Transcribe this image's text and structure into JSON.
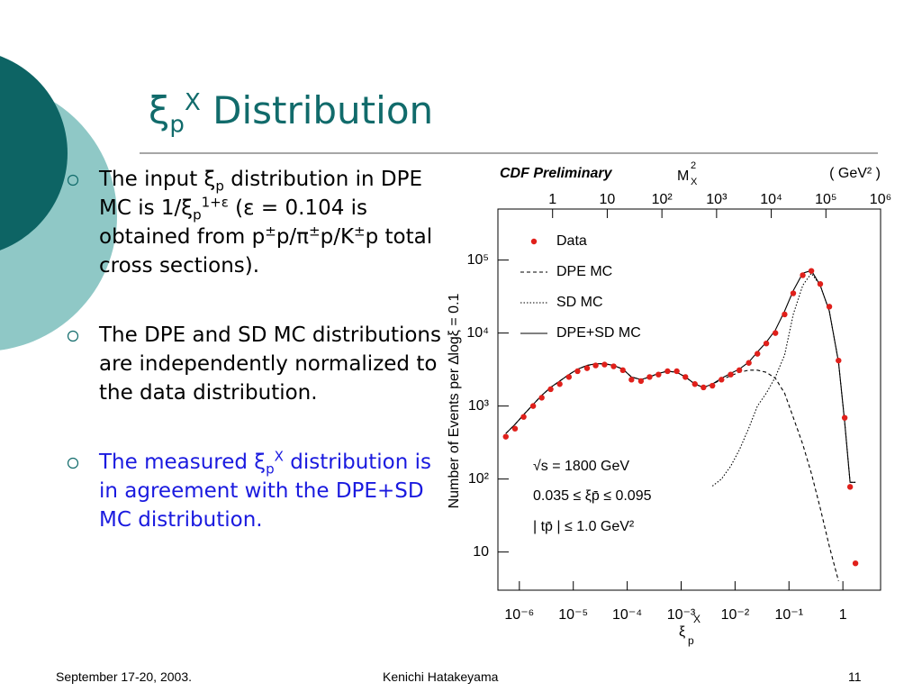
{
  "header": {
    "title": [
      {
        "text": "ξ"
      },
      {
        "sub": "p"
      },
      {
        "sup": "X"
      },
      {
        "text": " Distribution"
      }
    ]
  },
  "bullets": [
    {
      "color": "#000000",
      "parts": [
        {
          "text": "The input ξ"
        },
        {
          "sub": "p"
        },
        {
          "text": " distribution in DPE MC is 1/ξ"
        },
        {
          "sub": "p"
        },
        {
          "sup": "1+ε"
        },
        {
          "text": " (ε = 0.104 is obtained from p"
        },
        {
          "sup": "±"
        },
        {
          "text": "p/π"
        },
        {
          "sup": "±"
        },
        {
          "text": "p/K"
        },
        {
          "sup": "±"
        },
        {
          "text": "p total cross sections)."
        }
      ]
    },
    {
      "color": "#000000",
      "parts": [
        {
          "text": "The DPE and SD MC distributions are independently normalized to the data distribution."
        }
      ]
    },
    {
      "color": "#1a1adf",
      "parts": [
        {
          "text": "The measured ξ"
        },
        {
          "sub": "p"
        },
        {
          "sup": "X"
        },
        {
          "text": " distribution is in agreement with the DPE+SD MC distribution."
        }
      ]
    }
  ],
  "chart_data": {
    "type": "line",
    "title": "CDF Preliminary",
    "x2label": {
      "base": "M",
      "sup": "2",
      "sub": "X",
      "unit": "( GeV² )"
    },
    "ylabel": "Number of Events per ∆logξ = 0.1",
    "xlabel": {
      "base": "ξ",
      "sub": "p",
      "sup": "X"
    },
    "annotations": [
      "√s  = 1800 GeV",
      "0.035 ≤ ξp̄ ≤ 0.095",
      "| tp̄ | ≤ 1.0 GeV²"
    ],
    "xscale": "log",
    "yscale": "log",
    "xlim": [
      4e-07,
      5
    ],
    "ylim": [
      3,
      500000
    ],
    "x2lim": [
      0.1,
      1000000
    ],
    "xticks": [
      {
        "value": 1e-06,
        "label": "10⁻⁶"
      },
      {
        "value": 1e-05,
        "label": "10⁻⁵"
      },
      {
        "value": 0.0001,
        "label": "10⁻⁴"
      },
      {
        "value": 0.001,
        "label": "10⁻³"
      },
      {
        "value": 0.01,
        "label": "10⁻²"
      },
      {
        "value": 0.1,
        "label": "10⁻¹"
      },
      1
    ],
    "yticks": [
      10,
      {
        "value": 100,
        "label": "10²"
      },
      {
        "value": 1000,
        "label": "10³"
      },
      {
        "value": 10000,
        "label": "10⁴"
      },
      {
        "value": 100000,
        "label": "10⁵"
      }
    ],
    "x2ticks": [
      1,
      10,
      {
        "value": 100,
        "label": "10²"
      },
      {
        "value": 1000,
        "label": "10³"
      },
      {
        "value": 10000,
        "label": "10⁴"
      },
      {
        "value": 100000,
        "label": "10⁵"
      },
      {
        "value": 1000000,
        "label": "10⁶"
      }
    ],
    "x": [
      5.6e-07,
      8.3e-07,
      1.2e-06,
      1.8e-06,
      2.6e-06,
      3.8e-06,
      5.6e-06,
      8.3e-06,
      1.2e-05,
      1.8e-05,
      2.6e-05,
      3.8e-05,
      5.6e-05,
      8.3e-05,
      0.00012,
      0.00018,
      0.00026,
      0.00038,
      0.00056,
      0.00083,
      0.0012,
      0.0018,
      0.0026,
      0.0038,
      0.0056,
      0.0083,
      0.012,
      0.018,
      0.026,
      0.038,
      0.056,
      0.083,
      0.12,
      0.18,
      0.26,
      0.38,
      0.56,
      0.83,
      1.08,
      1.36,
      1.71
    ],
    "series": [
      {
        "name": "Data",
        "type": "scatter",
        "color": "#e0201b",
        "values": [
          380,
          490,
          710,
          1000,
          1300,
          1700,
          2000,
          2500,
          3000,
          3300,
          3600,
          3700,
          3500,
          3100,
          2300,
          2200,
          2500,
          2700,
          3000,
          3000,
          2500,
          2000,
          1800,
          1900,
          2300,
          2700,
          3100,
          3900,
          5200,
          7200,
          10000,
          18000,
          35000,
          62000,
          71000,
          47000,
          23000,
          4200,
          690,
          78,
          7
        ]
      },
      {
        "name": "DPE MC",
        "type": "line",
        "style": "dashed",
        "color": "#000000",
        "values": [
          420,
          560,
          760,
          1050,
          1400,
          1800,
          2200,
          2700,
          3200,
          3600,
          3800,
          3800,
          3600,
          3200,
          2500,
          2300,
          2500,
          2800,
          3000,
          2900,
          2500,
          2000,
          1800,
          2000,
          2300,
          2600,
          2900,
          3100,
          3100,
          2900,
          2400,
          1500,
          700,
          300,
          120,
          40,
          12,
          4,
          null,
          null,
          null
        ]
      },
      {
        "name": "SD MC",
        "type": "line",
        "style": "dotted",
        "color": "#000000",
        "values": [
          null,
          null,
          null,
          null,
          null,
          null,
          null,
          null,
          null,
          null,
          null,
          null,
          null,
          null,
          null,
          null,
          null,
          null,
          null,
          null,
          null,
          null,
          null,
          80,
          100,
          150,
          250,
          500,
          1000,
          1500,
          2500,
          5000,
          18000,
          45000,
          66000,
          45000,
          20000,
          4000,
          600,
          90,
          90
        ]
      },
      {
        "name": "DPE+SD MC",
        "type": "line",
        "style": "solid",
        "color": "#000000",
        "values": [
          420,
          560,
          760,
          1050,
          1400,
          1800,
          2200,
          2700,
          3200,
          3600,
          3800,
          3800,
          3600,
          3200,
          2500,
          2300,
          2500,
          2800,
          3000,
          2900,
          2500,
          2000,
          1800,
          2000,
          2400,
          2800,
          3200,
          4000,
          5500,
          7500,
          11000,
          20000,
          38000,
          66000,
          72000,
          45000,
          20000,
          4000,
          600,
          90,
          90
        ]
      }
    ]
  },
  "footer": {
    "date": "September 17-20, 2003.",
    "author": "Kenichi Hatakeyama",
    "page": "11"
  }
}
